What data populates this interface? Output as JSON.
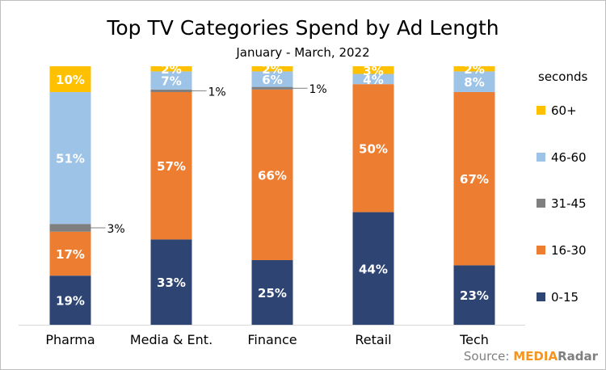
{
  "chart_data": {
    "type": "bar",
    "stacked": true,
    "title": "Top TV Categories Spend by Ad Length",
    "subtitle": "January - March, 2022",
    "legend_title": "seconds",
    "legend_position": "right",
    "categories": [
      "Pharma",
      "Media & Ent.",
      "Finance",
      "Retail",
      "Tech"
    ],
    "series": [
      {
        "name": "0-15",
        "color": "#2e4574",
        "values": [
          19,
          33,
          25,
          44,
          23
        ]
      },
      {
        "name": "16-30",
        "color": "#ed7d31",
        "values": [
          17,
          57,
          66,
          50,
          67
        ]
      },
      {
        "name": "31-45",
        "color": "#7f7f7f",
        "values": [
          3,
          1,
          1,
          0,
          0
        ]
      },
      {
        "name": "46-60",
        "color": "#9dc3e6",
        "values": [
          51,
          7,
          6,
          4,
          8
        ]
      },
      {
        "name": "60+",
        "color": "#ffc000",
        "values": [
          10,
          2,
          2,
          3,
          2
        ]
      }
    ],
    "data_labels": [
      [
        "19%",
        "33%",
        "25%",
        "44%",
        "23%"
      ],
      [
        "17%",
        "57%",
        "66%",
        "50%",
        "67%"
      ],
      [
        "3%",
        "1%",
        "1%",
        "",
        ""
      ],
      [
        "51%",
        "7%",
        "6%",
        "4%",
        "8%"
      ],
      [
        "10%",
        "2%",
        "2%",
        "3%",
        "2%"
      ]
    ],
    "ylim": [
      0,
      100
    ],
    "grid": false
  },
  "source": {
    "prefix": "Source: ",
    "brand_a": "MEDIA",
    "brand_b": "Radar"
  }
}
